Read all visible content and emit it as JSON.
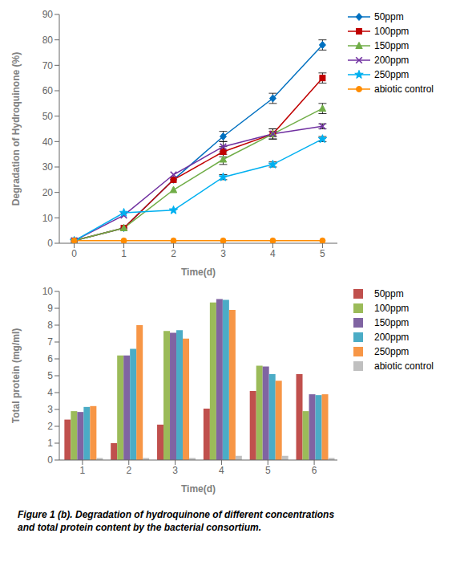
{
  "chart_data": [
    {
      "type": "line",
      "xlabel": "Time(d)",
      "ylabel": "Degradation of Hydroquinone (%)",
      "x": [
        0,
        1,
        2,
        3,
        4,
        5
      ],
      "xlim": [
        -0.3,
        5.3
      ],
      "xticks": [
        0,
        1,
        2,
        3,
        4,
        5
      ],
      "ylim": [
        0,
        90
      ],
      "yticks": [
        0,
        10,
        20,
        30,
        40,
        50,
        60,
        70,
        80,
        90
      ],
      "grid": false,
      "legend": "right",
      "series": [
        {
          "name": "50ppm",
          "color": "#0070C0",
          "marker": "diamond",
          "values": [
            1,
            6,
            25,
            42,
            57,
            78
          ],
          "errors": [
            0,
            0,
            0,
            2,
            2,
            2
          ]
        },
        {
          "name": "100ppm",
          "color": "#C00000",
          "marker": "square",
          "values": [
            1,
            6,
            25,
            36,
            43,
            65
          ],
          "errors": [
            0,
            0,
            0,
            2,
            2,
            2
          ]
        },
        {
          "name": "150ppm",
          "color": "#70AD47",
          "marker": "triangle",
          "values": [
            1,
            6,
            21,
            33,
            43,
            53
          ],
          "errors": [
            0,
            0,
            0,
            2,
            2,
            2
          ]
        },
        {
          "name": "200ppm",
          "color": "#7030A0",
          "marker": "x",
          "values": [
            1,
            11,
            27,
            38,
            43,
            46
          ],
          "errors": [
            0,
            0,
            0,
            2,
            1,
            1
          ]
        },
        {
          "name": "250ppm",
          "color": "#00B0F0",
          "marker": "star",
          "values": [
            1,
            12,
            13,
            26,
            31,
            41
          ],
          "errors": [
            0,
            0,
            0,
            1,
            1,
            1
          ]
        },
        {
          "name": "abiotic control",
          "color": "#FF8C00",
          "marker": "circle",
          "values": [
            1,
            1,
            1,
            1,
            1,
            1
          ],
          "errors": [
            0,
            0,
            0,
            0,
            0,
            0
          ]
        }
      ]
    },
    {
      "type": "bar",
      "xlabel": "Time(d)",
      "ylabel": "Total protein (mg/ml)",
      "categories": [
        1,
        2,
        3,
        4,
        5,
        6
      ],
      "ylim": [
        0,
        10
      ],
      "yticks": [
        0,
        1,
        2,
        3,
        4,
        5,
        6,
        7,
        8,
        9,
        10
      ],
      "grid": false,
      "legend": "right",
      "series": [
        {
          "name": "50ppm",
          "color": "#C0504D",
          "values": [
            2.4,
            1.0,
            2.1,
            3.05,
            4.1,
            5.1
          ]
        },
        {
          "name": "100ppm",
          "color": "#9BBB59",
          "values": [
            2.9,
            6.2,
            7.65,
            9.35,
            5.6,
            2.9
          ]
        },
        {
          "name": "150ppm",
          "color": "#8064A2",
          "values": [
            2.85,
            6.2,
            7.55,
            9.55,
            5.55,
            3.9
          ]
        },
        {
          "name": "200ppm",
          "color": "#4BACC6",
          "values": [
            3.15,
            6.6,
            7.7,
            9.5,
            5.1,
            3.85
          ]
        },
        {
          "name": "250ppm",
          "color": "#F79646",
          "values": [
            3.2,
            8.0,
            7.2,
            8.9,
            4.7,
            3.9
          ]
        },
        {
          "name": "abiotic control",
          "color": "#C0C0C0",
          "values": [
            0.12,
            0.12,
            0.12,
            0.25,
            0.25,
            0.12
          ]
        }
      ]
    }
  ],
  "caption": "Figure 1 (b). Degradation of hydroquinone of different concentrations\nand total protein content by the bacterial consortium."
}
